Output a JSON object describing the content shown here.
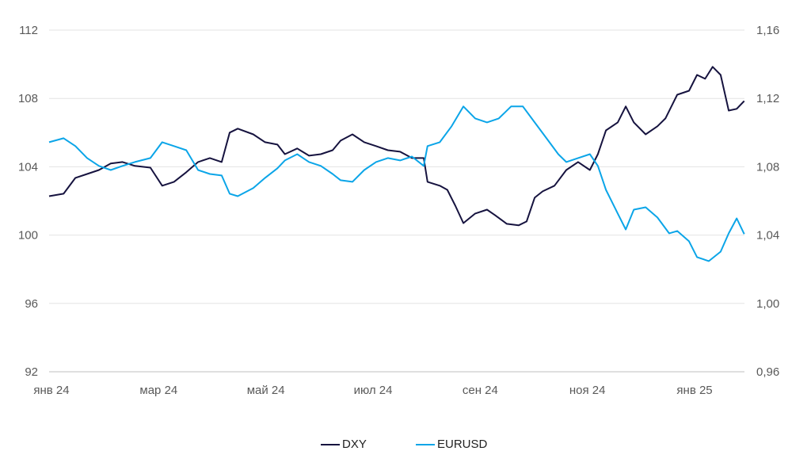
{
  "chart_data": {
    "type": "line",
    "title": "",
    "xlabel": "",
    "ylabel": "",
    "x_unit": "months since Jan 2024",
    "x_ticks": [
      {
        "m": 0,
        "label": "янв 24"
      },
      {
        "m": 2,
        "label": "мар 24"
      },
      {
        "m": 4,
        "label": "май 24"
      },
      {
        "m": 6,
        "label": "июл 24"
      },
      {
        "m": 8,
        "label": "сен 24"
      },
      {
        "m": 10,
        "label": "ноя 24"
      },
      {
        "m": 12,
        "label": "янв 25"
      }
    ],
    "y_left": {
      "min": 92,
      "max": 112,
      "ticks": [
        "92",
        "96",
        "100",
        "104",
        "108",
        "112"
      ]
    },
    "y_right": {
      "min": 0.96,
      "max": 1.16,
      "ticks": [
        "0,96",
        "1,00",
        "1,04",
        "1,08",
        "1,12",
        "1,16"
      ]
    },
    "grid": true,
    "legend_position": "bottom-center",
    "series": [
      {
        "name": "DXY",
        "axis": "left",
        "color": "#16133f",
        "x": [
          0,
          0.27,
          0.49,
          0.71,
          0.93,
          1.15,
          1.37,
          1.6,
          1.89,
          2.11,
          2.33,
          2.56,
          2.78,
          3.0,
          3.22,
          3.37,
          3.52,
          3.81,
          4.03,
          4.26,
          4.4,
          4.63,
          4.85,
          5.07,
          5.29,
          5.44,
          5.66,
          5.88,
          6.1,
          6.32,
          6.55,
          6.77,
          6.99,
          7.06,
          7.29,
          7.43,
          7.58,
          7.73,
          7.95,
          8.17,
          8.32,
          8.54,
          8.76,
          8.91,
          9.06,
          9.21,
          9.43,
          9.65,
          9.87,
          10.09,
          10.24,
          10.39,
          10.61,
          10.76,
          10.91,
          11.13,
          11.35,
          11.5,
          11.72,
          11.94,
          12.09,
          12.24,
          12.38,
          12.53,
          12.68,
          12.83,
          12.97
        ],
        "values": [
          102.28,
          102.42,
          103.35,
          103.58,
          103.81,
          104.19,
          104.28,
          104.05,
          103.95,
          102.89,
          103.12,
          103.68,
          104.28,
          104.51,
          104.28,
          106.0,
          106.23,
          105.9,
          105.44,
          105.3,
          104.74,
          105.07,
          104.65,
          104.74,
          104.97,
          105.53,
          105.9,
          105.44,
          105.21,
          104.97,
          104.88,
          104.51,
          104.51,
          103.12,
          102.89,
          102.65,
          101.72,
          100.7,
          101.26,
          101.49,
          101.17,
          100.66,
          100.57,
          100.8,
          102.19,
          102.56,
          102.89,
          103.81,
          104.28,
          103.81,
          104.74,
          106.13,
          106.6,
          107.53,
          106.6,
          105.9,
          106.37,
          106.83,
          108.22,
          108.45,
          109.38,
          109.15,
          109.85,
          109.38,
          107.29,
          107.39,
          107.85
        ]
      },
      {
        "name": "EURUSD",
        "axis": "right",
        "color": "#0ba5e8",
        "x": [
          0,
          0.27,
          0.49,
          0.71,
          0.93,
          1.15,
          1.37,
          1.6,
          1.89,
          2.11,
          2.33,
          2.56,
          2.78,
          3.0,
          3.22,
          3.37,
          3.52,
          3.81,
          4.03,
          4.26,
          4.4,
          4.63,
          4.85,
          5.07,
          5.29,
          5.44,
          5.66,
          5.88,
          6.1,
          6.32,
          6.55,
          6.77,
          6.99,
          7.06,
          7.29,
          7.51,
          7.73,
          7.95,
          8.17,
          8.39,
          8.62,
          8.84,
          9.06,
          9.28,
          9.5,
          9.65,
          9.87,
          10.09,
          10.24,
          10.39,
          10.61,
          10.76,
          10.91,
          11.13,
          11.35,
          11.57,
          11.72,
          11.94,
          12.09,
          12.31,
          12.53,
          12.68,
          12.83,
          12.97
        ],
        "values": [
          1.0944,
          1.0967,
          1.0921,
          1.0851,
          1.0805,
          1.0781,
          1.0805,
          1.0828,
          1.0851,
          1.0944,
          1.0921,
          1.0897,
          1.0781,
          1.0758,
          1.0749,
          1.0642,
          1.0628,
          1.0675,
          1.0735,
          1.0791,
          1.0837,
          1.0874,
          1.0828,
          1.0805,
          1.0758,
          1.0721,
          1.0712,
          1.0781,
          1.0828,
          1.0851,
          1.0837,
          1.086,
          1.0805,
          1.0921,
          1.0944,
          1.1037,
          1.1153,
          1.1083,
          1.106,
          1.1083,
          1.1153,
          1.1153,
          1.106,
          1.0967,
          1.0874,
          1.0828,
          1.0851,
          1.0874,
          1.0805,
          1.0665,
          1.0526,
          1.0433,
          1.0549,
          1.0563,
          1.0503,
          1.041,
          1.0424,
          1.0364,
          1.0271,
          1.0248,
          1.0303,
          1.041,
          1.0498,
          1.0406
        ]
      }
    ]
  }
}
